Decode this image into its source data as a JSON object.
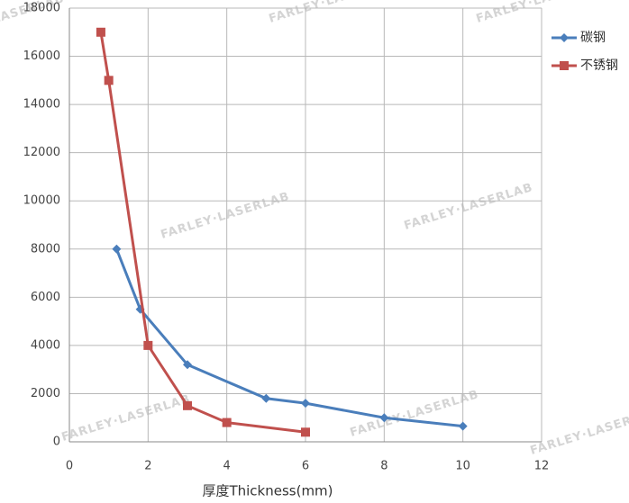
{
  "chart_data": {
    "type": "line",
    "x_label": "厚度Thickness(mm)",
    "watermark": "FARLEY·LASERLAB",
    "xlim": [
      0,
      12
    ],
    "xticks": [
      0,
      2,
      4,
      6,
      8,
      10,
      12
    ],
    "ylim": [
      0,
      18000
    ],
    "yticks": [
      0,
      2000,
      4000,
      6000,
      8000,
      10000,
      12000,
      14000,
      16000,
      18000
    ],
    "grid": true,
    "legend": "right",
    "series": [
      {
        "name": "碳钢",
        "color": "#4a7ebb",
        "marker": "diamond",
        "x": [
          1.2,
          1.8,
          3,
          5,
          6,
          8,
          10
        ],
        "values": [
          8000,
          5500,
          3200,
          1800,
          1600,
          1000,
          650
        ]
      },
      {
        "name": "不锈钢",
        "color": "#c0504d",
        "marker": "square",
        "x": [
          0.8,
          1,
          2,
          3,
          4,
          6
        ],
        "values": [
          17000,
          15000,
          4000,
          1500,
          800,
          400
        ]
      }
    ]
  }
}
